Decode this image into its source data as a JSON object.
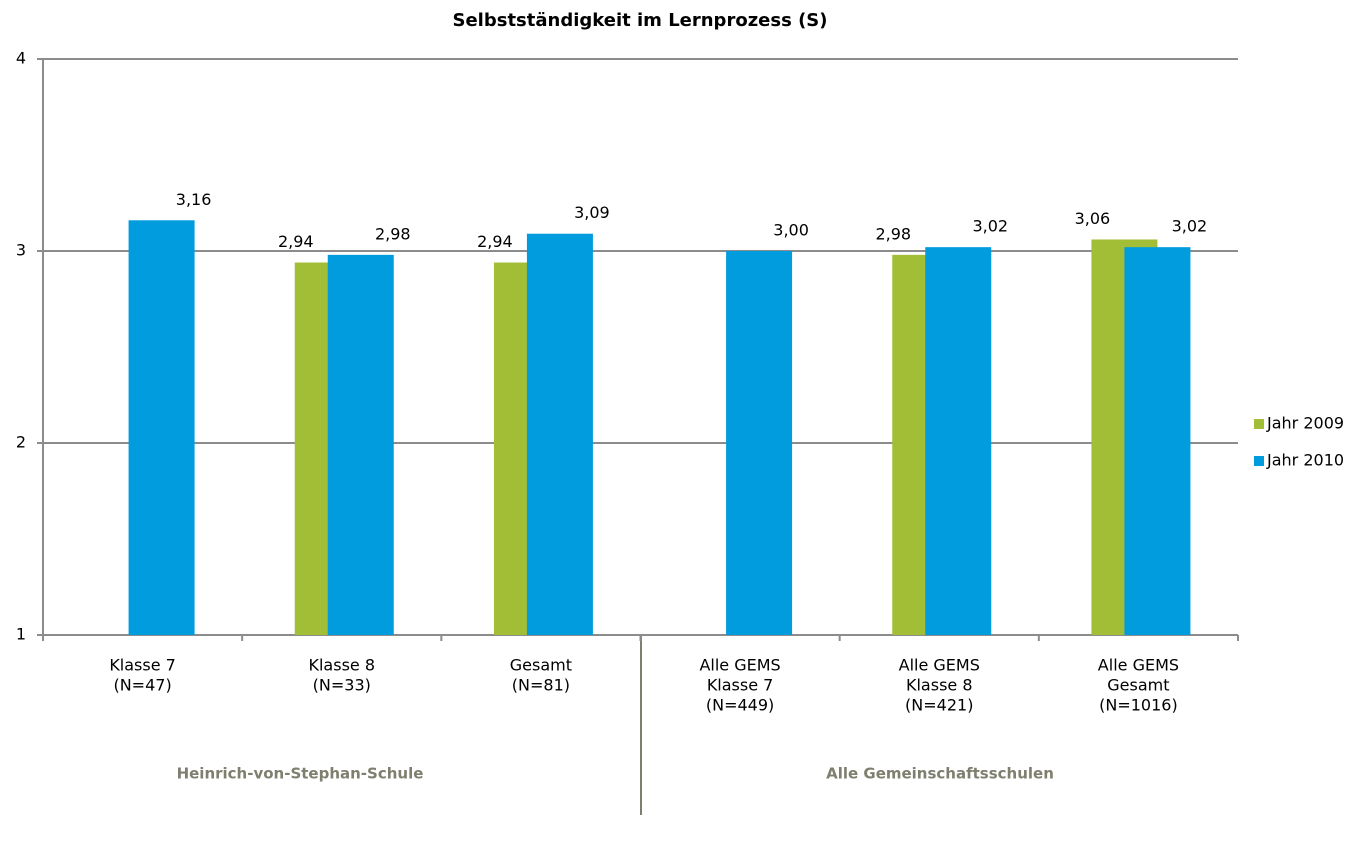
{
  "chart_data": {
    "type": "bar",
    "title": "Selbstständigkeit im Lernprozess (S)",
    "categories": [
      [
        "Klasse 7",
        "(N=47)"
      ],
      [
        "Klasse 8",
        "(N=33)"
      ],
      [
        "Gesamt",
        "(N=81)"
      ],
      [
        "Alle GEMS",
        "Klasse 7",
        "(N=449)"
      ],
      [
        "Alle GEMS",
        "Klasse 8",
        "(N=421)"
      ],
      [
        "Alle GEMS",
        "Gesamt",
        "(N=1016)"
      ]
    ],
    "group_labels": [
      "Heinrich-von-Stephan-Schule",
      "Alle Gemeinschaftsschulen"
    ],
    "series": [
      {
        "name": "Jahr 2009",
        "color": "#a2bd36",
        "values": [
          null,
          2.94,
          2.94,
          null,
          2.98,
          3.06
        ],
        "value_labels": [
          null,
          "2,94",
          "2,94",
          null,
          "2,98",
          "3,06"
        ]
      },
      {
        "name": "Jahr 2010",
        "color": "#009cde",
        "values": [
          3.16,
          2.98,
          3.09,
          3.0,
          3.02,
          3.02
        ],
        "value_labels": [
          "3,16",
          "2,98",
          "3,09",
          "3,00",
          "3,02",
          "3,02"
        ]
      }
    ],
    "ylim": [
      1,
      4
    ],
    "yticks": [
      1,
      2,
      3,
      4
    ],
    "grid": true,
    "legend": "right"
  }
}
